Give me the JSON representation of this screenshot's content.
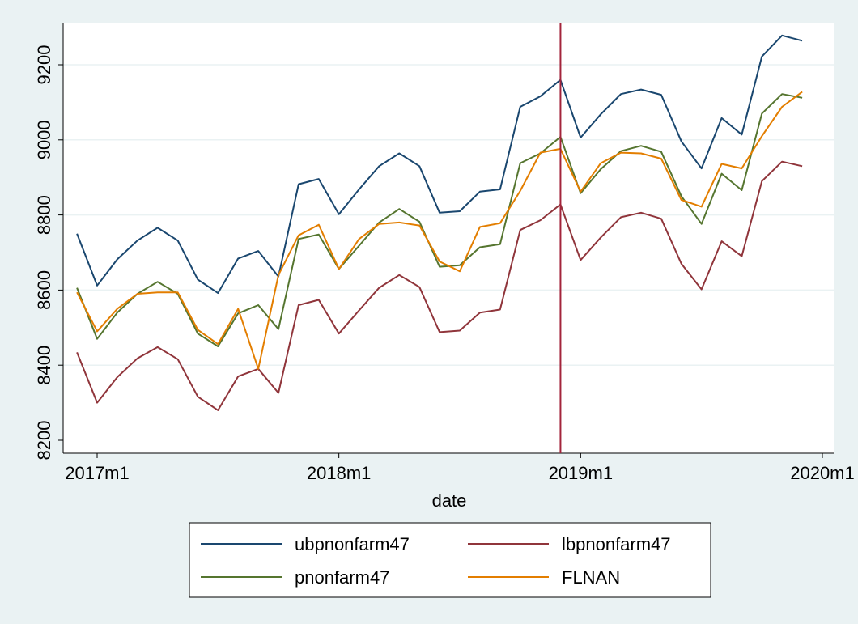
{
  "chart_data": {
    "type": "line",
    "xlabel": "date",
    "ylabel": "",
    "x_ticks": [
      "2017m1",
      "2018m1",
      "2019m1",
      "2020m1"
    ],
    "y_ticks": [
      8200,
      8400,
      8600,
      8800,
      9000,
      9200
    ],
    "xlim": [
      "2016m12",
      "2020m1"
    ],
    "ylim": [
      8200,
      9200
    ],
    "grid": "horizontal",
    "legend_position": "bottom",
    "reference_line": {
      "x": "2018m12",
      "color": "#a3243b"
    },
    "x": [
      "2016m12",
      "2017m1",
      "2017m2",
      "2017m3",
      "2017m4",
      "2017m5",
      "2017m6",
      "2017m7",
      "2017m8",
      "2017m9",
      "2017m10",
      "2017m11",
      "2017m12",
      "2018m1",
      "2018m2",
      "2018m3",
      "2018m4",
      "2018m5",
      "2018m6",
      "2018m7",
      "2018m8",
      "2018m9",
      "2018m10",
      "2018m11",
      "2018m12",
      "2019m1",
      "2019m2",
      "2019m3",
      "2019m4",
      "2019m5",
      "2019m6",
      "2019m7",
      "2019m8",
      "2019m9",
      "2019m10",
      "2019m11",
      "2019m12"
    ],
    "series": [
      {
        "name": "ubpnonfarm47",
        "color": "#1a476f",
        "values": [
          8750,
          8612,
          8682,
          8732,
          8766,
          8732,
          8628,
          8592,
          8684,
          8704,
          8636,
          8882,
          8896,
          8802,
          8868,
          8930,
          8964,
          8930,
          8806,
          8810,
          8862,
          8868,
          9088,
          9116,
          9160,
          9006,
          9068,
          9122,
          9134,
          9120,
          8996,
          8924,
          9058,
          9014,
          9222,
          9278,
          9264
        ]
      },
      {
        "name": "lbpnonfarm47",
        "color": "#90353b",
        "values": [
          8434,
          8300,
          8368,
          8418,
          8448,
          8416,
          8316,
          8280,
          8370,
          8390,
          8326,
          8560,
          8574,
          8484,
          8546,
          8606,
          8640,
          8608,
          8488,
          8492,
          8540,
          8548,
          8760,
          8786,
          8828,
          8680,
          8740,
          8794,
          8806,
          8790,
          8670,
          8602,
          8730,
          8690,
          8890,
          8942,
          8930
        ]
      },
      {
        "name": "pnonfarm47",
        "color": "#55752f",
        "values": [
          8606,
          8470,
          8540,
          8590,
          8622,
          8590,
          8484,
          8450,
          8538,
          8560,
          8496,
          8736,
          8748,
          8656,
          8718,
          8780,
          8816,
          8782,
          8662,
          8666,
          8714,
          8722,
          8938,
          8964,
          9008,
          8858,
          8922,
          8970,
          8984,
          8968,
          8850,
          8776,
          8910,
          8866,
          9070,
          9122,
          9112
        ]
      },
      {
        "name": "FLNAN",
        "color": "#e37e00",
        "values": [
          8594,
          8490,
          8550,
          8590,
          8594,
          8594,
          8494,
          8456,
          8550,
          8390,
          8640,
          8746,
          8774,
          8656,
          8736,
          8776,
          8780,
          8772,
          8676,
          8650,
          8768,
          8778,
          8864,
          8966,
          8976,
          8862,
          8938,
          8966,
          8964,
          8950,
          8840,
          8822,
          8936,
          8924,
          9010,
          9088,
          9128
        ]
      }
    ]
  }
}
